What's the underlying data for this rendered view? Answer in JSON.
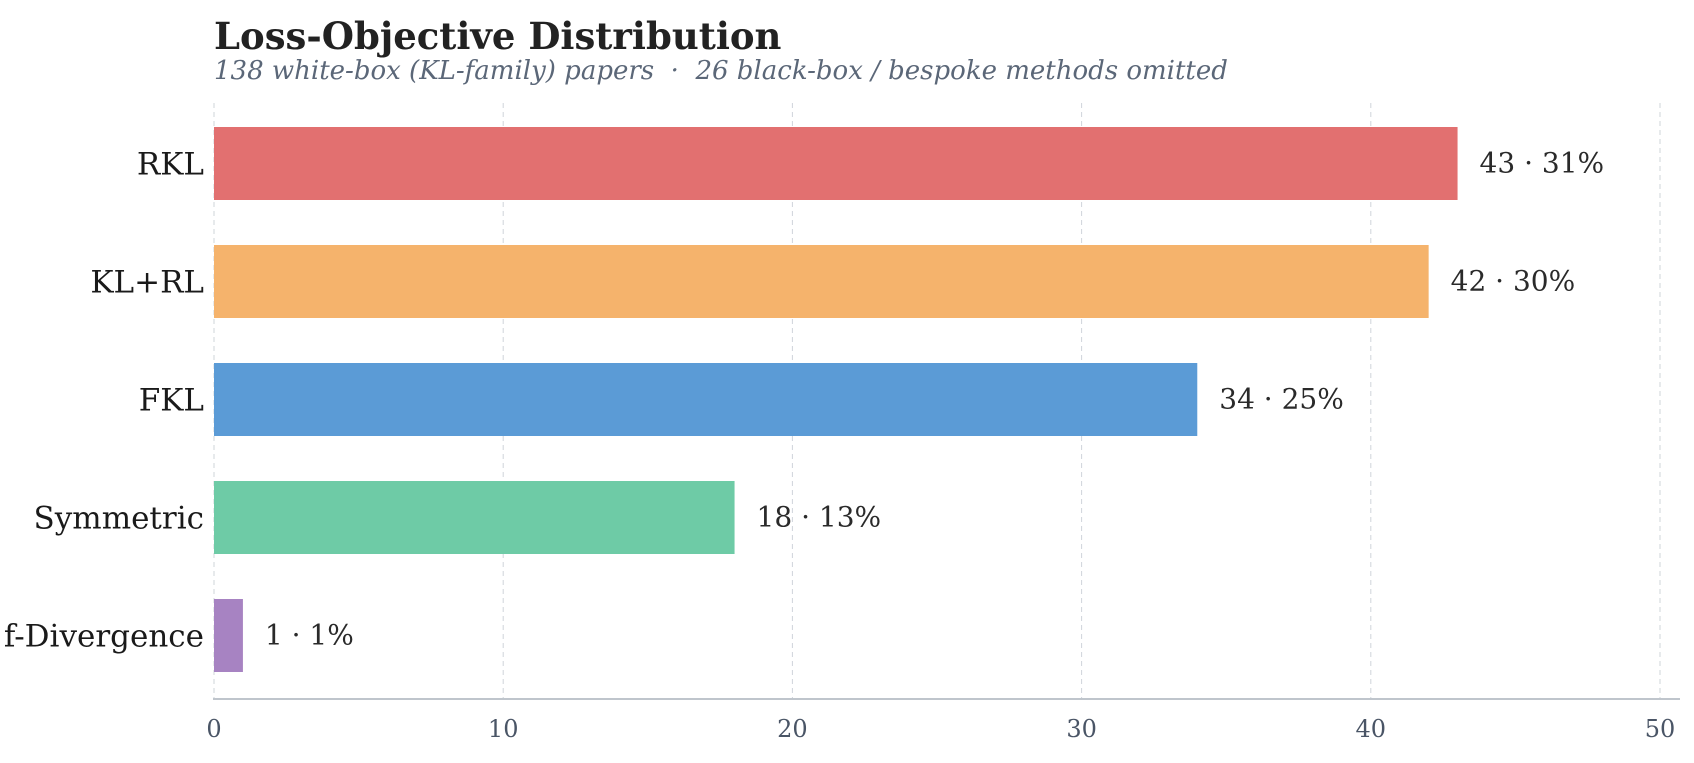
{
  "chart_data": {
    "type": "bar",
    "orientation": "horizontal",
    "title": "Loss-Objective Distribution",
    "subtitle": "138 white-box (KL-family) papers  ·  26 black-box / bespoke methods omitted",
    "xlabel": "",
    "ylabel": "",
    "xlim": [
      0,
      50
    ],
    "xticks": [
      0,
      10,
      20,
      30,
      40,
      50
    ],
    "grid": "vertical-dashed",
    "categories": [
      "RKL",
      "KL+RL",
      "FKL",
      "Symmetric",
      "f-Divergence"
    ],
    "values": [
      43,
      42,
      34,
      18,
      1
    ],
    "data_labels": [
      "43 · 31%",
      "42 · 30%",
      "34 · 25%",
      "18 · 13%",
      "1 · 1%"
    ],
    "colors": [
      "#e27070",
      "#f5b36c",
      "#5b9bd6",
      "#6ecba6",
      "#a783c2"
    ]
  }
}
